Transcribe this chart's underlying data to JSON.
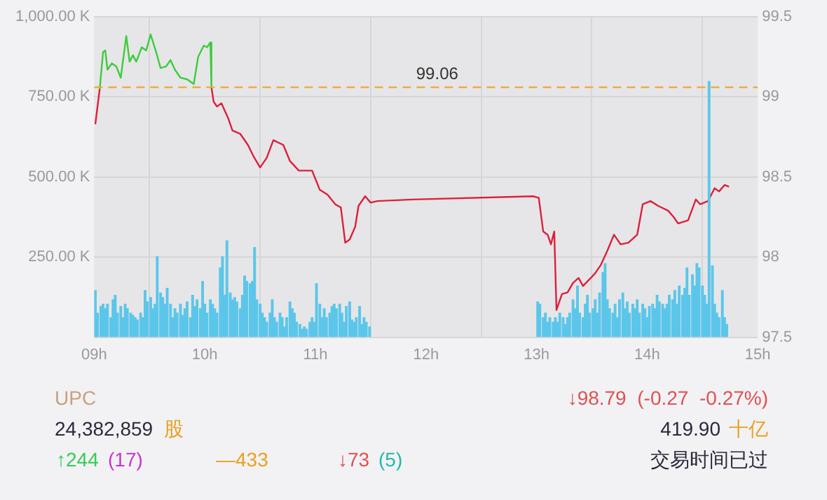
{
  "chart_data": {
    "type": "line",
    "xlim": [
      9,
      15
    ],
    "xticks": [
      {
        "value": 9,
        "label": "09h"
      },
      {
        "value": 10,
        "label": "10h"
      },
      {
        "value": 11,
        "label": "11h"
      },
      {
        "value": 12,
        "label": "12h"
      },
      {
        "value": 13,
        "label": "13h"
      },
      {
        "value": 14,
        "label": "14h"
      },
      {
        "value": 15,
        "label": "15h"
      }
    ],
    "ylim": [
      0,
      1000
    ],
    "yticks": [
      {
        "value": 0,
        "label": null
      },
      {
        "value": 250,
        "label": "250.00 K"
      },
      {
        "value": 500,
        "label": "500.00 K"
      },
      {
        "value": 750,
        "label": "750.00 K"
      },
      {
        "value": 1000,
        "label": "1,000.00 K"
      }
    ],
    "y2lim": [
      97.5,
      99.5
    ],
    "y2ticks": [
      97.5,
      98,
      98.5,
      99,
      99.5
    ],
    "grid": true,
    "marker": "none",
    "ref_lines": [
      {
        "axis": "y2",
        "value": 99.06,
        "label": "99.06",
        "color": "#f0a830",
        "line_style": "dashed"
      }
    ],
    "series": [
      {
        "type": "bar",
        "axis": "y",
        "color": "#5bc6ea",
        "x": [
          9.01,
          9.03,
          9.06,
          9.08,
          9.1,
          9.12,
          9.15,
          9.17,
          9.19,
          9.21,
          9.24,
          9.26,
          9.28,
          9.3,
          9.33,
          9.35,
          9.37,
          9.39,
          9.42,
          9.44,
          9.46,
          9.48,
          9.51,
          9.53,
          9.55,
          9.57,
          9.6,
          9.62,
          9.64,
          9.66,
          9.69,
          9.71,
          9.73,
          9.75,
          9.78,
          9.8,
          9.82,
          9.84,
          9.87,
          9.89,
          9.91,
          9.93,
          9.96,
          9.98,
          10.0,
          10.02,
          10.05,
          10.07,
          10.09,
          10.11,
          10.14,
          10.16,
          10.18,
          10.2,
          10.23,
          10.25,
          10.27,
          10.29,
          10.32,
          10.34,
          10.36,
          10.38,
          10.41,
          10.43,
          10.45,
          10.47,
          10.5,
          10.52,
          10.54,
          10.56,
          10.59,
          10.61,
          10.63,
          10.65,
          10.68,
          10.7,
          10.72,
          10.74,
          10.77,
          10.79,
          10.81,
          10.83,
          10.86,
          10.88,
          10.9,
          10.92,
          10.95,
          10.97,
          10.99,
          11.01,
          11.04,
          11.06,
          11.08,
          11.1,
          11.13,
          11.15,
          11.17,
          11.19,
          11.22,
          11.24,
          11.26,
          11.28,
          11.31,
          11.33,
          11.35,
          11.37,
          11.4,
          11.42,
          11.44,
          11.46,
          11.49,
          13.01,
          13.03,
          13.06,
          13.08,
          13.1,
          13.12,
          13.15,
          13.17,
          13.19,
          13.21,
          13.24,
          13.26,
          13.28,
          13.3,
          13.33,
          13.35,
          13.37,
          13.39,
          13.42,
          13.44,
          13.46,
          13.48,
          13.51,
          13.53,
          13.55,
          13.57,
          13.6,
          13.62,
          13.64,
          13.66,
          13.69,
          13.71,
          13.73,
          13.75,
          13.78,
          13.8,
          13.82,
          13.84,
          13.87,
          13.89,
          13.91,
          13.93,
          13.96,
          13.98,
          14.0,
          14.02,
          14.05,
          14.07,
          14.09,
          14.11,
          14.14,
          14.16,
          14.18,
          14.2,
          14.23,
          14.25,
          14.27,
          14.29,
          14.32,
          14.34,
          14.36,
          14.38,
          14.41,
          14.43,
          14.45,
          14.47,
          14.5,
          14.52,
          14.54,
          14.56,
          14.59,
          14.61,
          14.63,
          14.65,
          14.68,
          14.7,
          14.72
        ],
        "values": [
          146,
          75,
          96,
          103,
          89,
          103,
          61,
          117,
          131,
          75,
          96,
          61,
          103,
          89,
          75,
          68,
          61,
          54,
          75,
          61,
          146,
          110,
          124,
          89,
          103,
          252,
          138,
          124,
          103,
          153,
          103,
          61,
          89,
          75,
          103,
          68,
          89,
          110,
          61,
          131,
          96,
          117,
          89,
          174,
          103,
          75,
          117,
          103,
          89,
          75,
          216,
          252,
          131,
          301,
          138,
          117,
          124,
          110,
          89,
          131,
          191,
          174,
          167,
          174,
          280,
          117,
          103,
          75,
          61,
          47,
          75,
          117,
          61,
          47,
          75,
          61,
          32,
          61,
          110,
          89,
          75,
          47,
          40,
          25,
          32,
          25,
          47,
          61,
          47,
          167,
          103,
          61,
          89,
          61,
          75,
          96,
          103,
          89,
          103,
          75,
          47,
          96,
          110,
          54,
          47,
          61,
          96,
          40,
          61,
          47,
          32,
          110,
          103,
          61,
          75,
          47,
          61,
          47,
          61,
          47,
          75,
          61,
          40,
          61,
          75,
          117,
          89,
          160,
          75,
          61,
          103,
          131,
          75,
          89,
          117,
          75,
          138,
          202,
          230,
          117,
          89,
          75,
          103,
          61,
          117,
          138,
          89,
          110,
          75,
          103,
          89,
          117,
          75,
          103,
          89,
          61,
          96,
          103,
          89,
          131,
          110,
          103,
          89,
          103,
          131,
          117,
          146,
          103,
          160,
          131,
          153,
          216,
          131,
          195,
          160,
          230,
          216,
          160,
          131,
          103,
          798,
          223,
          103,
          75,
          61,
          146,
          61,
          40
        ]
      },
      {
        "axis": "y2",
        "color": "#dd1f3c",
        "x": [
          9.01,
          9.05,
          9.06,
          10.06,
          10.08,
          10.11,
          10.15,
          10.21,
          10.25,
          10.32,
          10.39,
          10.44,
          10.5,
          10.56,
          10.62,
          10.71,
          10.77,
          10.85,
          10.93,
          10.97,
          11.04,
          11.11,
          11.18,
          11.23,
          11.27,
          11.31,
          11.36,
          11.39,
          11.45,
          11.5,
          11.56,
          11.88,
          12.97,
          13.02,
          13.06,
          13.1,
          13.13,
          13.16,
          13.18,
          13.23,
          13.28,
          13.33,
          13.38,
          13.42,
          13.49,
          13.53,
          13.58,
          13.64,
          13.7,
          13.76,
          13.83,
          13.91,
          13.96,
          14.03,
          14.1,
          14.19,
          14.24,
          14.28,
          14.37,
          14.44,
          14.48,
          14.55,
          14.61,
          14.65,
          14.7,
          14.74
        ],
        "values": [
          98.83,
          99.05,
          null,
          99.06,
          98.97,
          98.94,
          98.96,
          98.87,
          98.79,
          98.77,
          98.7,
          98.63,
          98.56,
          98.62,
          98.73,
          98.7,
          98.6,
          98.54,
          98.54,
          98.54,
          98.42,
          98.39,
          98.33,
          98.31,
          98.09,
          98.11,
          98.19,
          98.32,
          98.38,
          98.34,
          98.35,
          98.36,
          98.38,
          98.37,
          98.16,
          98.14,
          98.08,
          98.16,
          97.67,
          97.77,
          97.78,
          97.84,
          97.87,
          97.82,
          97.87,
          97.9,
          97.95,
          98.04,
          98.14,
          98.08,
          98.09,
          98.14,
          98.33,
          98.35,
          98.32,
          98.29,
          98.25,
          98.21,
          98.23,
          98.36,
          98.33,
          98.35,
          98.43,
          98.41,
          98.45,
          98.44
        ]
      },
      {
        "axis": "y2",
        "color": "#3ccc3c",
        "x": [
          9.05,
          9.08,
          9.1,
          9.12,
          9.16,
          9.2,
          9.24,
          9.29,
          9.32,
          9.35,
          9.38,
          9.43,
          9.47,
          9.51,
          9.56,
          9.6,
          9.65,
          9.69,
          9.73,
          9.78,
          9.84,
          9.9,
          9.94,
          9.99,
          10.02,
          10.05,
          10.06
        ],
        "values": [
          99.05,
          99.28,
          99.29,
          99.17,
          99.21,
          99.19,
          99.12,
          99.38,
          99.22,
          99.26,
          99.22,
          99.31,
          99.29,
          99.39,
          99.28,
          99.18,
          99.19,
          99.23,
          99.17,
          99.12,
          99.11,
          99.08,
          99.25,
          99.32,
          99.31,
          99.34,
          99.06
        ]
      }
    ],
    "annotations": [
      "UPC",
      "24,382,859",
      "股",
      "↓98.79  (-0.27  -0.27%)",
      "419.90",
      "十亿",
      "↑244",
      "(17)",
      "—433",
      "↓73",
      "(5)",
      "交易时间已过"
    ]
  }
}
